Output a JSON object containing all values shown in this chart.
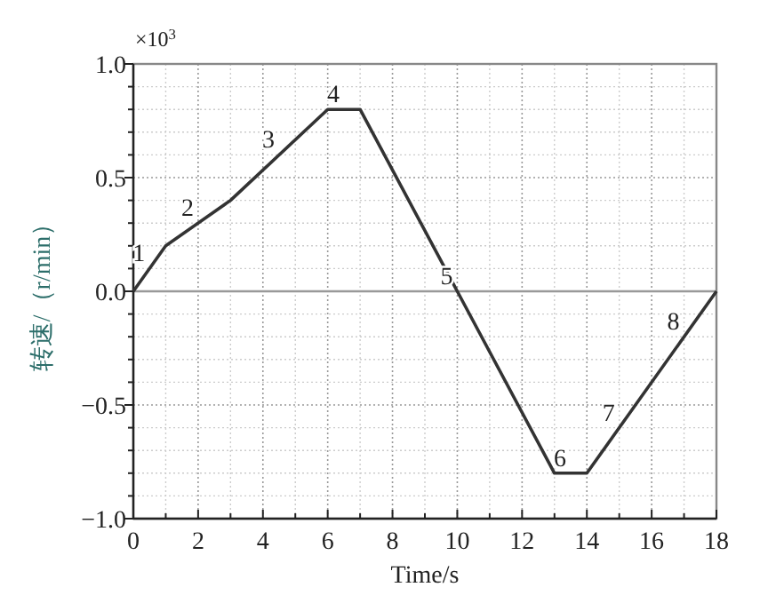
{
  "chart_data": {
    "type": "line",
    "xlabel": "Time/s",
    "ylabel": "转速/（r/min）",
    "x": [
      0,
      1,
      3,
      6,
      7,
      10,
      13,
      14,
      18
    ],
    "series": [
      {
        "color": "#333333",
        "values": [
          0,
          0.2,
          0.4,
          0.8,
          0.8,
          0,
          -0.8,
          -0.8,
          0
        ]
      }
    ],
    "xlim": [
      0,
      18
    ],
    "xticks": [
      0,
      2,
      4,
      6,
      8,
      10,
      12,
      14,
      16,
      18
    ],
    "ylim": [
      -1,
      1
    ],
    "yticks": [
      {
        "value": -1,
        "label": "−1.0"
      },
      {
        "value": -0.5,
        "label": "−0.5"
      },
      {
        "value": 0,
        "label": "0.0"
      },
      {
        "value": 0.5,
        "label": "0.5"
      },
      {
        "value": 1,
        "label": "1.0"
      }
    ],
    "ref_lines": [
      {
        "axis": "y",
        "value": 0,
        "color": "#999999"
      }
    ],
    "grid": true,
    "marker": "none",
    "line_style": "solid",
    "annotations": [
      "×10$^{3}$",
      {
        "text": "1",
        "x": 0.5,
        "y": 0.1
      },
      {
        "text": "2",
        "x": 2,
        "y": 0.3
      },
      {
        "text": "3",
        "x": 4.5,
        "y": 0.6
      },
      {
        "text": "4",
        "x": 6.5,
        "y": 0.8
      },
      {
        "text": "5",
        "x": 10,
        "y": 0
      },
      {
        "text": "6",
        "x": 13.5,
        "y": -0.8
      },
      {
        "text": "7",
        "x": 15,
        "y": -0.6
      },
      {
        "text": "8",
        "x": 17,
        "y": -0.2
      }
    ]
  }
}
